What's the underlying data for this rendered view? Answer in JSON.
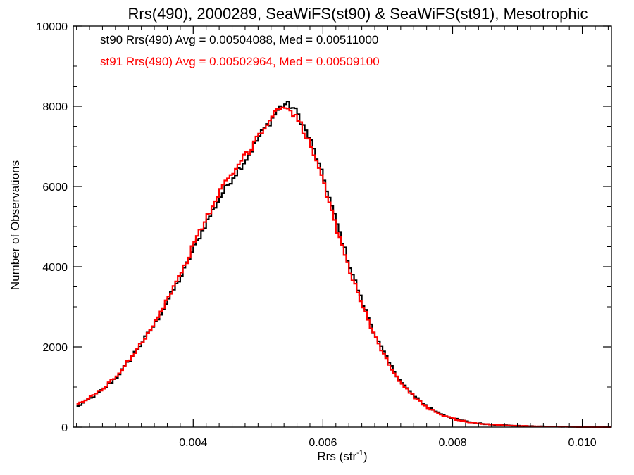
{
  "chart_data": {
    "type": "line",
    "title": "Rrs(490), 2000289, SeaWiFS(st90) & SeaWiFS(st91), Mesotrophic",
    "xlabel_base": "Rrs (str",
    "xlabel_sup": "-1",
    "xlabel_close": ")",
    "ylabel": "Number of Observations",
    "xlim": [
      0.00215,
      0.01045
    ],
    "ylim": [
      0,
      10000
    ],
    "x_ticks": [
      0.004,
      0.006,
      0.008,
      0.01
    ],
    "x_tick_labels": [
      "0.004",
      "0.006",
      "0.008",
      "0.010"
    ],
    "y_ticks": [
      0,
      2000,
      4000,
      6000,
      8000,
      10000
    ],
    "y_tick_labels": [
      "0",
      "2000",
      "4000",
      "6000",
      "8000",
      "10000"
    ],
    "bin_width": 4e-05,
    "series": [
      {
        "name": "st90",
        "color": "#000000",
        "annotation": "st90 Rrs(490) Avg = 0.00504088, Med = 0.00511000",
        "x": [
          0.0022,
          0.0024,
          0.0026,
          0.0028,
          0.003,
          0.0032,
          0.0034,
          0.0036,
          0.0038,
          0.004,
          0.0042,
          0.0044,
          0.0046,
          0.0048,
          0.005,
          0.0052,
          0.0053,
          0.0054,
          0.0055,
          0.0056,
          0.0058,
          0.006,
          0.0062,
          0.0064,
          0.0066,
          0.0068,
          0.007,
          0.0072,
          0.0074,
          0.0076,
          0.0078,
          0.008,
          0.0082,
          0.0084,
          0.0086,
          0.0088,
          0.009,
          0.0092,
          0.0094,
          0.0096,
          0.0098,
          0.01,
          0.0102,
          0.01045
        ],
        "y": [
          520,
          720,
          950,
          1250,
          1680,
          2130,
          2600,
          3200,
          3780,
          4500,
          5150,
          5750,
          6250,
          6700,
          7250,
          7700,
          7950,
          8050,
          8000,
          7780,
          7100,
          6150,
          5050,
          4000,
          3050,
          2250,
          1600,
          1100,
          750,
          500,
          330,
          210,
          140,
          90,
          65,
          45,
          30,
          22,
          15,
          10,
          8,
          5,
          4,
          3
        ]
      },
      {
        "name": "st91",
        "color": "#ff0000",
        "annotation": "st91 Rrs(490) Avg = 0.00502964, Med = 0.00509100",
        "x": [
          0.0022,
          0.0024,
          0.0026,
          0.0028,
          0.003,
          0.0032,
          0.0034,
          0.0036,
          0.0038,
          0.004,
          0.0042,
          0.0044,
          0.0046,
          0.0048,
          0.005,
          0.0052,
          0.0053,
          0.0054,
          0.0055,
          0.0056,
          0.0058,
          0.006,
          0.0062,
          0.0064,
          0.0066,
          0.0068,
          0.007,
          0.0072,
          0.0074,
          0.0076,
          0.0078,
          0.008,
          0.0082,
          0.0084,
          0.0086,
          0.0088,
          0.009,
          0.0092,
          0.0094,
          0.0096,
          0.0098,
          0.01,
          0.0102,
          0.01045
        ],
        "y": [
          560,
          750,
          980,
          1270,
          1700,
          2150,
          2650,
          3250,
          3850,
          4600,
          5250,
          5900,
          6350,
          6800,
          7300,
          7750,
          7950,
          8000,
          7900,
          7650,
          7000,
          6000,
          4900,
          3900,
          2980,
          2200,
          1560,
          1080,
          730,
          490,
          320,
          205,
          135,
          88,
          62,
          44,
          30,
          22,
          15,
          10,
          8,
          5,
          4,
          3
        ]
      }
    ],
    "grid": false,
    "legend": "top-left"
  }
}
